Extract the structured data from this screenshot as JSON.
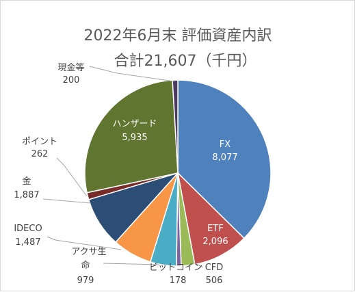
{
  "chart_data": {
    "type": "pie",
    "title_line1": "2022年6月末 評価資産内訳",
    "title_line2": "合計21,607（千円）",
    "start_angle_deg": 0,
    "direction": "clockwise",
    "slices": [
      {
        "key": "fx",
        "label": "FX",
        "value": 8077,
        "value_text": "8,077",
        "color": "#4f81bd",
        "label_style": "inside"
      },
      {
        "key": "etf",
        "label": "ETF",
        "value": 2096,
        "value_text": "2,096",
        "color": "#c0504d",
        "label_style": "inside"
      },
      {
        "key": "cfd",
        "label": "CFD",
        "value": 506,
        "value_text": "506",
        "color": "#9bbb59",
        "label_style": "outside"
      },
      {
        "key": "bitcoin",
        "label": "ビットコイン",
        "value": 178,
        "value_text": "178",
        "color": "#8064a2",
        "label_style": "outside"
      },
      {
        "key": "cfd2",
        "label": "",
        "value": 0,
        "value_text": "",
        "color": "#4bacc6",
        "label_style": "none"
      },
      {
        "key": "aqusa",
        "label": "アクサ生命",
        "value": 979,
        "value_text": "979",
        "color": "#f79646",
        "label_style": "outside"
      },
      {
        "key": "ideco",
        "label": "IDECO",
        "value": 1487,
        "value_text": "1,487",
        "color": "#2c4d75",
        "label_style": "outside"
      },
      {
        "key": "gold",
        "label": "金",
        "value": 1887,
        "value_text": "1,887",
        "color": "#772c2a",
        "label_style": "outside"
      },
      {
        "key": "points",
        "label": "ポイント",
        "value": 262,
        "value_text": "262",
        "color": "#5f7530",
        "label_style": "outside"
      },
      {
        "key": "hanzado",
        "label": "ハンザード",
        "value": 5935,
        "value_text": "5,935",
        "color": "#4d3b62",
        "label_style": "inside"
      },
      {
        "key": "cash",
        "label": "現金等",
        "value": 200,
        "value_text": "200",
        "color": "#31859c",
        "label_style": "outside"
      }
    ]
  }
}
